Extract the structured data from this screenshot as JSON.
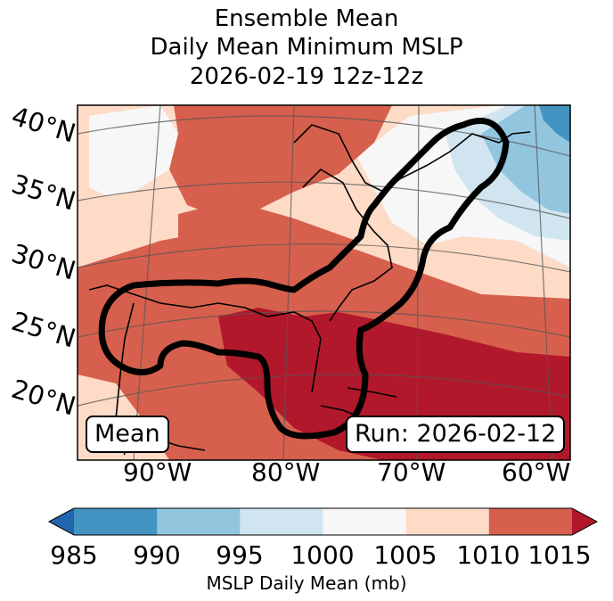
{
  "title": {
    "line1": "Ensemble Mean",
    "line2": "Daily Mean Minimum MSLP",
    "line3": "2026-02-19 12z-12z"
  },
  "latitude_labels": [
    "40°N",
    "35°N",
    "30°N",
    "25°N",
    "20°N"
  ],
  "longitude_labels": [
    "90°W",
    "80°W",
    "70°W",
    "60°W"
  ],
  "annotations": {
    "mean_box": "Mean",
    "run_box": "Run: 2026-02-12"
  },
  "colorbar": {
    "ticks": [
      "985",
      "990",
      "995",
      "1000",
      "1005",
      "1010",
      "1015"
    ],
    "label": "MSLP Daily Mean (mb)",
    "colors": [
      "#2166ac",
      "#4393c3",
      "#92c5de",
      "#d1e5f0",
      "#f7f7f7",
      "#fddbc7",
      "#d6604d",
      "#b2182b"
    ]
  },
  "map": {
    "field": "Ensemble mean daily minimum mean sea level pressure",
    "outline_color": "#000000"
  }
}
